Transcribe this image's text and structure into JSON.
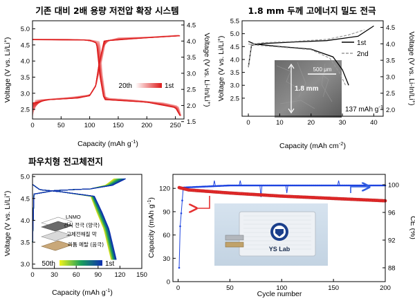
{
  "panels": {
    "a": {
      "title": "기존 대비 2배 용량 저전압 확장 시스템",
      "xlabel_main": "Capacity (mAh g",
      "xlabel_sup": "-1",
      "xlabel_end": ")",
      "ylabel_left_main": "Voltage (V vs. Li/Li",
      "ylabel_left_sup": "+",
      "ylabel_left_end": ")",
      "ylabel_right_main": "Voltage (V vs. Li-In/Li",
      "ylabel_right_sup": "+",
      "ylabel_right_end": ")",
      "legend_start": "20th",
      "legend_end": "1st",
      "xticks": [
        "0",
        "50",
        "100",
        "150",
        "200",
        "250"
      ],
      "yticks_left": [
        "2.5",
        "3.0",
        "3.5",
        "4.0",
        "4.5",
        "5.0"
      ],
      "yticks_right": [
        "1.5",
        "2.0",
        "2.5",
        "3.0",
        "3.5",
        "4.0",
        "4.5"
      ]
    },
    "b": {
      "title": "1.8 mm 두께 고에너지 밀도 전극",
      "xlabel_main": "Capacity (mAh cm",
      "xlabel_sup": "-2",
      "xlabel_end": ")",
      "ylabel_left_main": "Voltage (V vs. Li/Li",
      "ylabel_left_sup": "+",
      "ylabel_left_end": ")",
      "ylabel_right_main": "Voltage (V vs. Li-In/Li",
      "ylabel_right_sup": "+",
      "ylabel_right_end": ")",
      "legend_1": "1st",
      "legend_2": "2nd",
      "inset_scale": "500 μm",
      "inset_thickness": "1.8 mm",
      "annotation_main": "137 mAh g",
      "annotation_sup": "-1",
      "xticks": [
        "0",
        "10",
        "20",
        "30",
        "40"
      ],
      "yticks_left": [
        "2.5",
        "3.0",
        "3.5",
        "4.0",
        "4.5",
        "5.0",
        "5.5"
      ],
      "yticks_right": [
        "2.0",
        "2.5",
        "3.0",
        "3.5",
        "4.0",
        "4.5"
      ]
    },
    "c": {
      "title": "파우치형 전고체전지",
      "xlabel_main": "Capacity (mAh g",
      "xlabel_sup": "-1",
      "xlabel_end": ")",
      "ylabel_main": "Voltage (V vs. Li/Li",
      "ylabel_sup": "+",
      "ylabel_end": ")",
      "legend_start": "50th",
      "legend_end": "1st",
      "layer_1": "LNMO",
      "layer_2": "건식 전극 (양극)",
      "layer_3": "고체전해질 막",
      "layer_4": "리튬 메탈 (음극)",
      "xticks": [
        "0",
        "30",
        "60",
        "90",
        "120",
        "150"
      ],
      "yticks": [
        "3.0",
        "3.5",
        "4.0",
        "4.5",
        "5.0"
      ]
    },
    "d": {
      "xlabel": "Cycle number",
      "ylabel_left_main": "Capacity (mAh g",
      "ylabel_left_sup": "-1",
      "ylabel_left_end": ")",
      "ylabel_right": "CE (%)",
      "photo_label": "YS Lab",
      "xticks": [
        "0",
        "50",
        "100",
        "150",
        "200"
      ],
      "yticks_left": [
        "0",
        "30",
        "60",
        "90",
        "120"
      ],
      "yticks_right": [
        "88",
        "92",
        "96",
        "100"
      ]
    }
  },
  "colors": {
    "red_dark": "#dd1a1a",
    "red_light": "#f6b4b4",
    "grey_dashed": "#999999",
    "capacity_red": "#e82b2b",
    "ce_blue": "#1d43e0",
    "arrow_red": "#e53030",
    "arrow_blue": "#2f5de0",
    "cycle_start": "#0d2fb0",
    "cycle_mid": "#1aa05a",
    "cycle_end": "#e8e81a"
  },
  "chart_data": [
    {
      "id": "a",
      "type": "line",
      "title": "기존 대비 2배 용량 저전압 확장 시스템",
      "xlabel": "Capacity (mAh g-1)",
      "ylabel": "Voltage (V vs. Li/Li+)",
      "y2label": "Voltage (V vs. Li-In/Li+)",
      "xlim": [
        0,
        265
      ],
      "ylim": [
        2.2,
        5.25
      ],
      "y2lim": [
        1.58,
        4.63
      ],
      "series": [
        {
          "name": "1st",
          "charge": [
            [
              0,
              2.28
            ],
            [
              5,
              2.78
            ],
            [
              30,
              2.82
            ],
            [
              70,
              2.88
            ],
            [
              100,
              2.95
            ],
            [
              112,
              3.3
            ],
            [
              120,
              3.9
            ],
            [
              128,
              4.6
            ],
            [
              150,
              4.72
            ],
            [
              200,
              4.74
            ],
            [
              255,
              4.8
            ]
          ],
          "discharge": [
            [
              0,
              4.68
            ],
            [
              50,
              4.68
            ],
            [
              100,
              4.66
            ],
            [
              118,
              4.6
            ],
            [
              122,
              3.6
            ],
            [
              128,
              2.85
            ],
            [
              170,
              2.8
            ],
            [
              230,
              2.7
            ],
            [
              255,
              2.6
            ],
            [
              260,
              2.3
            ]
          ]
        },
        {
          "name": "20th",
          "charge": [
            [
              0,
              2.7
            ],
            [
              30,
              2.8
            ],
            [
              80,
              2.85
            ],
            [
              100,
              2.92
            ],
            [
              110,
              3.2
            ],
            [
              116,
              3.9
            ],
            [
              125,
              4.62
            ],
            [
              200,
              4.72
            ],
            [
              258,
              4.78
            ]
          ],
          "discharge": [
            [
              0,
              4.66
            ],
            [
              100,
              4.65
            ],
            [
              112,
              4.55
            ],
            [
              118,
              3.5
            ],
            [
              125,
              2.8
            ],
            [
              200,
              2.72
            ],
            [
              250,
              2.55
            ],
            [
              258,
              2.3
            ]
          ]
        }
      ]
    },
    {
      "id": "b",
      "type": "line",
      "title": "1.8 mm 두께 고에너지 밀도 전극",
      "xlabel": "Capacity (mAh cm-2)",
      "ylabel": "Voltage (V vs. Li/Li+)",
      "y2label": "Voltage (V vs. Li-In/Li+)",
      "xlim": [
        -2,
        43
      ],
      "ylim": [
        1.8,
        5.5
      ],
      "y2lim": [
        1.8,
        4.7
      ],
      "annotation": "137 mAh g-1",
      "series": [
        {
          "name": "1st",
          "charge": [
            [
              0,
              3.7
            ],
            [
              1,
              4.55
            ],
            [
              5,
              4.62
            ],
            [
              15,
              4.68
            ],
            [
              25,
              4.73
            ],
            [
              35,
              4.9
            ],
            [
              40,
              5.3
            ]
          ],
          "discharge": [
            [
              0,
              4.7
            ],
            [
              2,
              4.6
            ],
            [
              10,
              4.5
            ],
            [
              20,
              4.4
            ],
            [
              27,
              4.1
            ],
            [
              30,
              3.6
            ],
            [
              32,
              3.0
            ]
          ]
        },
        {
          "name": "2nd",
          "charge": [
            [
              0,
              3.7
            ],
            [
              1,
              4.6
            ],
            [
              5,
              4.65
            ],
            [
              15,
              4.7
            ],
            [
              25,
              4.78
            ],
            [
              32,
              4.95
            ],
            [
              37,
              5.15
            ]
          ],
          "discharge": [
            [
              0,
              4.6
            ],
            [
              3,
              4.55
            ],
            [
              10,
              4.48
            ],
            [
              20,
              4.38
            ],
            [
              26,
              4.05
            ],
            [
              29,
              3.5
            ],
            [
              31,
              3.0
            ]
          ]
        }
      ]
    },
    {
      "id": "c",
      "type": "line",
      "title": "파우치형 전고체전지",
      "xlabel": "Capacity (mAh g-1)",
      "ylabel": "Voltage (V vs. Li/Li+)",
      "xlim": [
        0,
        150
      ],
      "ylim": [
        2.9,
        5.05
      ],
      "series": [
        {
          "name": "1st",
          "charge": [
            [
              0,
              3.5
            ],
            [
              2,
              4.6
            ],
            [
              30,
              4.68
            ],
            [
              80,
              4.72
            ],
            [
              110,
              4.8
            ],
            [
              128,
              4.95
            ]
          ],
          "discharge": [
            [
              0,
              4.82
            ],
            [
              10,
              4.7
            ],
            [
              40,
              4.65
            ],
            [
              85,
              4.55
            ],
            [
              95,
              4.2
            ],
            [
              105,
              3.8
            ],
            [
              115,
              3.1
            ]
          ]
        },
        {
          "name": "50th",
          "charge": [
            [
              0,
              3.5
            ],
            [
              2,
              4.6
            ],
            [
              30,
              4.68
            ],
            [
              80,
              4.72
            ],
            [
              100,
              4.8
            ],
            [
              112,
              4.95
            ]
          ],
          "discharge": [
            [
              0,
              4.82
            ],
            [
              10,
              4.7
            ],
            [
              40,
              4.65
            ],
            [
              80,
              4.55
            ],
            [
              88,
              4.2
            ],
            [
              98,
              3.8
            ],
            [
              108,
              3.1
            ]
          ]
        }
      ]
    },
    {
      "id": "d",
      "type": "scatter",
      "xlabel": "Cycle number",
      "ylabel": "Capacity (mAh g-1)",
      "y2label": "CE (%)",
      "xlim": [
        -5,
        200
      ],
      "ylim": [
        0,
        138
      ],
      "y2lim": [
        86,
        101.5
      ],
      "series": [
        {
          "name": "Capacity",
          "axis": "left",
          "values_at": [
            [
              1,
              121
            ],
            [
              10,
              118
            ],
            [
              50,
              114
            ],
            [
              100,
              110
            ],
            [
              150,
              107
            ],
            [
              200,
              104
            ]
          ]
        },
        {
          "name": "CE",
          "axis": "right",
          "values_at": [
            [
              1,
              88
            ],
            [
              2,
              94
            ],
            [
              5,
              99.6
            ],
            [
              50,
              99.9
            ],
            [
              100,
              99.9
            ],
            [
              150,
              99.9
            ],
            [
              200,
              99.9
            ]
          ]
        }
      ]
    }
  ]
}
